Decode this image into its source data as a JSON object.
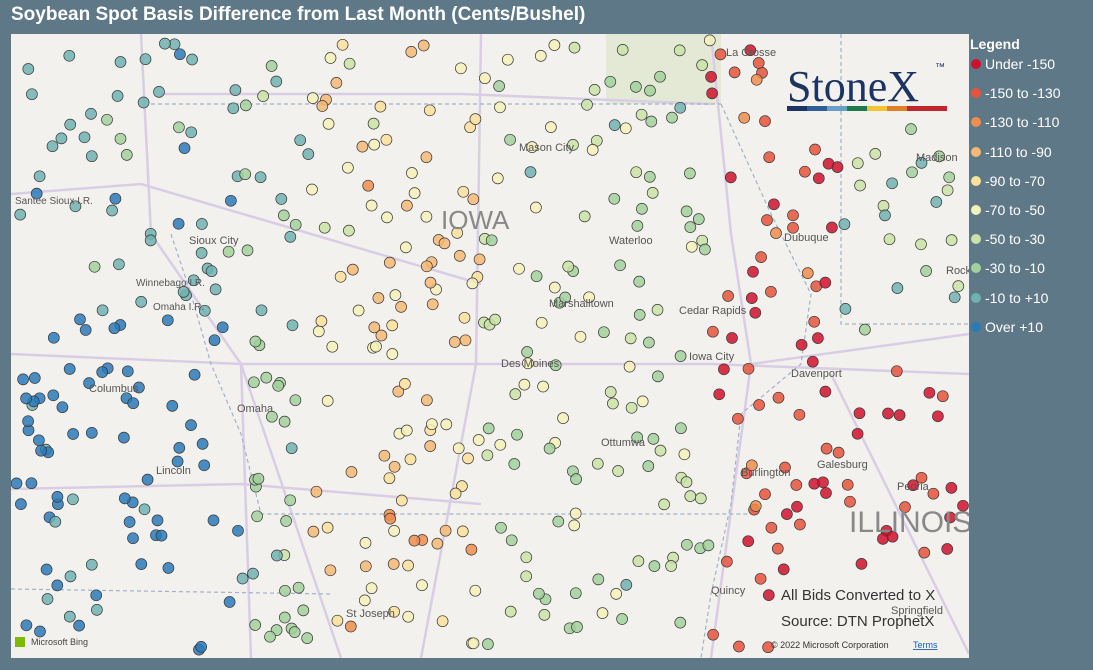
{
  "title": "Soybean Spot Basis Difference from Last Month (Cents/Bushel)",
  "legend": {
    "title": "Legend",
    "items": [
      {
        "label": "Under -150",
        "color": "#d0112b"
      },
      {
        "label": "-150 to -130",
        "color": "#e8543a"
      },
      {
        "label": "-130 to -110",
        "color": "#f08c4c"
      },
      {
        "label": "-110 to -90",
        "color": "#f6b873"
      },
      {
        "label": "-90 to -70",
        "color": "#fbe19a"
      },
      {
        "label": "-70 to -50",
        "color": "#f4f1b8"
      },
      {
        "label": "-50 to -30",
        "color": "#c9e3a5"
      },
      {
        "label": "-30 to -10",
        "color": "#a2d19b"
      },
      {
        "label": "-10 to +10",
        "color": "#6fb3b0"
      },
      {
        "label": "Over +10",
        "color": "#2a7ab8"
      }
    ]
  },
  "logo": {
    "name": "StoneX",
    "mark": "™"
  },
  "map_labels": [
    "IOWA",
    "ILLINOIS",
    "Mason City",
    "Waterloo",
    "Dubuque",
    "Cedar Rapids",
    "Iowa City",
    "Davenport",
    "Marshalltown",
    "Des Moines",
    "Ottumwa",
    "Burlington",
    "Galesburg",
    "Peoria",
    "Springfield",
    "Quincy",
    "St Joseph",
    "Omaha",
    "Lincoln",
    "Columbus",
    "Sioux City",
    "Winnebago I.R.",
    "Omaha I.R.",
    "Santee Sioux I.R.",
    "Madison",
    "Rock",
    "La Crosse"
  ],
  "notes": [
    "All Bids Converted to X",
    "Source: DTN ProphetX"
  ],
  "footer": {
    "brand": "Microsoft Bing",
    "copyright": "© 2022 Microsoft Corporation",
    "terms": "Terms"
  }
}
